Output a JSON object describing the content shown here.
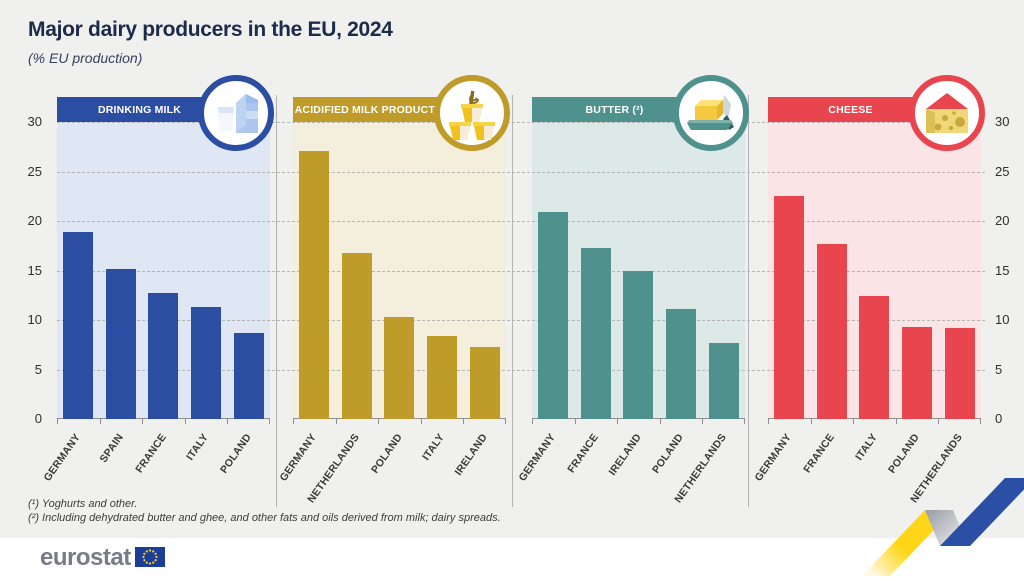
{
  "page": {
    "title": "Major dairy producers in the EU, 2024",
    "subtitle": "(% EU production)",
    "footnotes": [
      "(¹) Yoghurts and other.",
      "(²) Including dehydrated butter and ghee, and other fats and oils derived from milk; dairy spreads."
    ],
    "footer": {
      "brand": "eurostat"
    }
  },
  "axis": {
    "ticks": [
      0,
      5,
      10,
      15,
      20,
      25,
      30
    ],
    "ylim": [
      0,
      32
    ]
  },
  "chart_data": [
    {
      "type": "bar",
      "title": "DRINKING MILK",
      "icon": "milk-icon",
      "color": "#2b4ea3",
      "bg": "#dfe7f5",
      "categories": [
        "GERMANY",
        "SPAIN",
        "FRANCE",
        "ITALY",
        "POLAND"
      ],
      "values": [
        18.9,
        15.2,
        12.7,
        11.3,
        8.7
      ]
    },
    {
      "type": "bar",
      "title": "ACIDIFIED MILK PRODUCTS (¹)",
      "icon": "yogurt-icon",
      "color": "#bf9b2a",
      "bg": "#f4eedc",
      "categories": [
        "GERMANY",
        "NETHERLANDS",
        "POLAND",
        "ITALY",
        "IRELAND"
      ],
      "values": [
        27.1,
        16.8,
        10.3,
        8.4,
        7.3
      ]
    },
    {
      "type": "bar",
      "title": "BUTTER (²)",
      "icon": "butter-icon",
      "color": "#4f918d",
      "bg": "#dde9e6",
      "categories": [
        "GERMANY",
        "FRANCE",
        "IRELAND",
        "POLAND",
        "NETHERLANDS"
      ],
      "values": [
        20.9,
        17.3,
        14.9,
        11.1,
        7.7
      ]
    },
    {
      "type": "bar",
      "title": "CHEESE",
      "icon": "cheese-icon",
      "color": "#e8454f",
      "bg": "#fae4e5",
      "categories": [
        "GERMANY",
        "FRANCE",
        "ITALY",
        "POLAND",
        "NETHERLANDS"
      ],
      "values": [
        22.5,
        17.7,
        12.4,
        9.3,
        9.2
      ]
    }
  ]
}
